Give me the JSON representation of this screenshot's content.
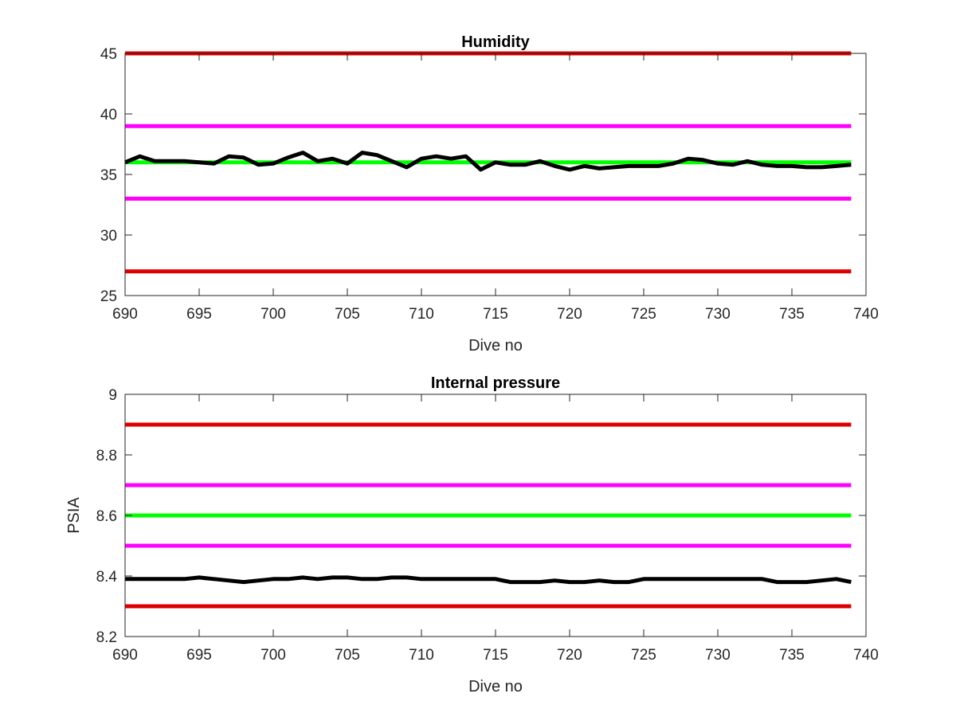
{
  "colors": {
    "red": "#dd0000",
    "magenta": "#ff00ff",
    "green": "#00ff00",
    "black": "#000000",
    "axis": "#262626"
  },
  "chart_data": [
    {
      "type": "line",
      "title": "Humidity",
      "xlabel": "Dive no",
      "ylabel": "",
      "xlim": [
        690,
        740
      ],
      "ylim": [
        25,
        45
      ],
      "xticks": [
        690,
        695,
        700,
        705,
        710,
        715,
        720,
        725,
        730,
        735,
        740
      ],
      "xtick_labels": [
        "690",
        "695",
        "700",
        "705",
        "710",
        "715",
        "720",
        "725",
        "730",
        "735",
        "740"
      ],
      "yticks": [
        25,
        30,
        35,
        40,
        45
      ],
      "ytick_labels": [
        "25",
        "30",
        "35",
        "40",
        "45"
      ],
      "grid": false,
      "legend": "none",
      "reference_lines": [
        {
          "y": 45,
          "color": "red"
        },
        {
          "y": 39,
          "color": "magenta"
        },
        {
          "y": 36,
          "color": "green"
        },
        {
          "y": 33,
          "color": "magenta"
        },
        {
          "y": 27,
          "color": "red"
        }
      ],
      "series": [
        {
          "color": "black",
          "x": [
            690,
            691,
            692,
            693,
            694,
            695,
            696,
            697,
            698,
            699,
            700,
            701,
            702,
            703,
            704,
            705,
            706,
            707,
            708,
            709,
            710,
            711,
            712,
            713,
            714,
            715,
            716,
            717,
            718,
            719,
            720,
            721,
            722,
            723,
            724,
            725,
            726,
            727,
            728,
            729,
            730,
            731,
            732,
            733,
            734,
            735,
            736,
            737,
            738,
            739
          ],
          "values": [
            36.0,
            36.5,
            36.1,
            36.1,
            36.1,
            36.0,
            35.9,
            36.5,
            36.4,
            35.8,
            35.9,
            36.4,
            36.8,
            36.1,
            36.3,
            35.9,
            36.8,
            36.6,
            36.1,
            35.6,
            36.3,
            36.5,
            36.3,
            36.5,
            35.4,
            36.0,
            35.8,
            35.8,
            36.1,
            35.7,
            35.4,
            35.7,
            35.5,
            35.6,
            35.7,
            35.7,
            35.7,
            35.9,
            36.3,
            36.2,
            35.9,
            35.8,
            36.1,
            35.8,
            35.7,
            35.7,
            35.6,
            35.6,
            35.7,
            35.8
          ]
        }
      ]
    },
    {
      "type": "line",
      "title": "Internal pressure",
      "xlabel": "Dive no",
      "ylabel": "PSIA",
      "xlim": [
        690,
        740
      ],
      "ylim": [
        8.2,
        9.0
      ],
      "xticks": [
        690,
        695,
        700,
        705,
        710,
        715,
        720,
        725,
        730,
        735,
        740
      ],
      "xtick_labels": [
        "690",
        "695",
        "700",
        "705",
        "710",
        "715",
        "720",
        "725",
        "730",
        "735",
        "740"
      ],
      "yticks": [
        8.2,
        8.4,
        8.6,
        8.8,
        9.0
      ],
      "ytick_labels": [
        "8.2",
        "8.4",
        "8.6",
        "8.8",
        "9"
      ],
      "grid": false,
      "legend": "none",
      "reference_lines": [
        {
          "y": 8.9,
          "color": "red"
        },
        {
          "y": 8.7,
          "color": "magenta"
        },
        {
          "y": 8.6,
          "color": "green"
        },
        {
          "y": 8.5,
          "color": "magenta"
        },
        {
          "y": 8.3,
          "color": "red"
        }
      ],
      "series": [
        {
          "color": "black",
          "x": [
            690,
            691,
            692,
            693,
            694,
            695,
            696,
            697,
            698,
            699,
            700,
            701,
            702,
            703,
            704,
            705,
            706,
            707,
            708,
            709,
            710,
            711,
            712,
            713,
            714,
            715,
            716,
            717,
            718,
            719,
            720,
            721,
            722,
            723,
            724,
            725,
            726,
            727,
            728,
            729,
            730,
            731,
            732,
            733,
            734,
            735,
            736,
            737,
            738,
            739
          ],
          "values": [
            8.39,
            8.39,
            8.39,
            8.39,
            8.39,
            8.395,
            8.39,
            8.385,
            8.38,
            8.385,
            8.39,
            8.39,
            8.395,
            8.39,
            8.395,
            8.395,
            8.39,
            8.39,
            8.395,
            8.395,
            8.39,
            8.39,
            8.39,
            8.39,
            8.39,
            8.39,
            8.38,
            8.38,
            8.38,
            8.385,
            8.38,
            8.38,
            8.385,
            8.38,
            8.38,
            8.39,
            8.39,
            8.39,
            8.39,
            8.39,
            8.39,
            8.39,
            8.39,
            8.39,
            8.38,
            8.38,
            8.38,
            8.385,
            8.39,
            8.38
          ]
        }
      ]
    }
  ]
}
